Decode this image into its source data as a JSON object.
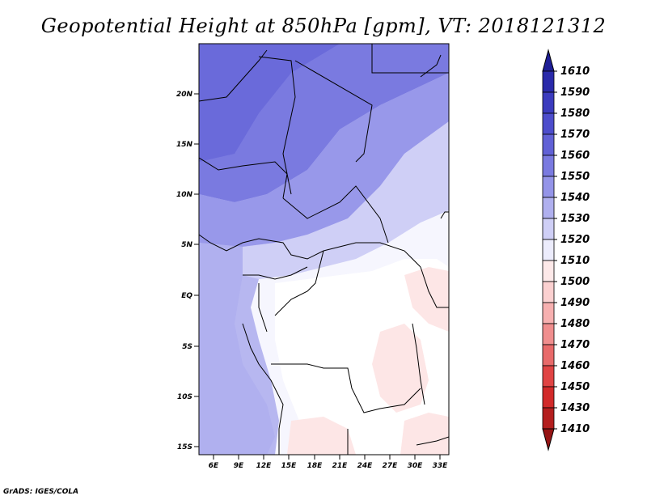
{
  "title": "Geopotential Height at 850hPa [gpm], VT: 2018121312",
  "footer": "GrADS: IGES/COLA",
  "lon_ticks": [
    "6E",
    "9E",
    "12E",
    "15E",
    "18E",
    "21E",
    "24E",
    "27E",
    "30E",
    "33E"
  ],
  "lat_ticks": [
    "20N",
    "15N",
    "10N",
    "5N",
    "EQ",
    "5S",
    "10S",
    "15S"
  ],
  "colorbar": {
    "labels": [
      "1610",
      "1590",
      "1580",
      "1570",
      "1560",
      "1550",
      "1540",
      "1530",
      "1520",
      "1510",
      "1500",
      "1490",
      "1480",
      "1470",
      "1460",
      "1450",
      "1430",
      "1410"
    ],
    "colors": [
      "#1e1e96",
      "#2a2aaa",
      "#3b3bbe",
      "#4d4dcc",
      "#6161d6",
      "#7a7ae0",
      "#9494e8",
      "#b0b0ef",
      "#cfcff6",
      "#ececfc",
      "#fde9e9",
      "#fbd0d0",
      "#f7b0b0",
      "#f08e8e",
      "#e86a6a",
      "#e04444",
      "#d22a2a",
      "#b41e1e",
      "#961414"
    ]
  }
}
